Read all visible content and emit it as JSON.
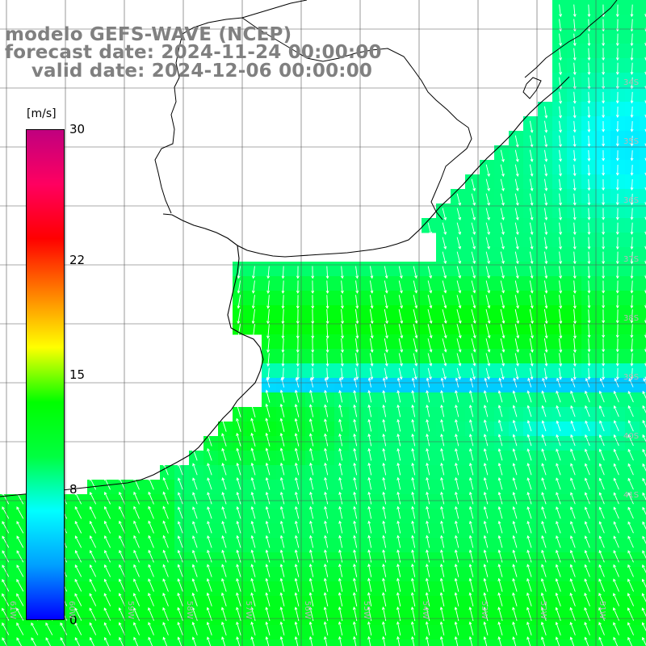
{
  "title": {
    "line1": "modelo GEFS-WAVE (NCEP)",
    "line2": "forecast date: 2024-11-24 00:00:00",
    "line3": "    valid date: 2024-12-06 00:00:00"
  },
  "colorbar": {
    "unit": "[m/s]",
    "min": 0,
    "max": 30,
    "ticks": [
      "30",
      "22",
      "15",
      "8",
      "0"
    ],
    "colors": [
      "#0000ff",
      "#00a0ff",
      "#00ffff",
      "#00ff40",
      "#00ff00",
      "#ffff00",
      "#ff8000",
      "#ff0000",
      "#ff0060",
      "#c0007f"
    ]
  },
  "map": {
    "land_color": "#ffffff",
    "grid": true,
    "lat_labels": [
      "34S",
      "35S",
      "36S",
      "37S",
      "38S",
      "39S",
      "40S",
      "41S"
    ],
    "lon_labels": [
      "61W",
      "60W",
      "59W",
      "58W",
      "57W",
      "56W",
      "55W",
      "54W",
      "53W",
      "52W",
      "51W"
    ]
  }
}
